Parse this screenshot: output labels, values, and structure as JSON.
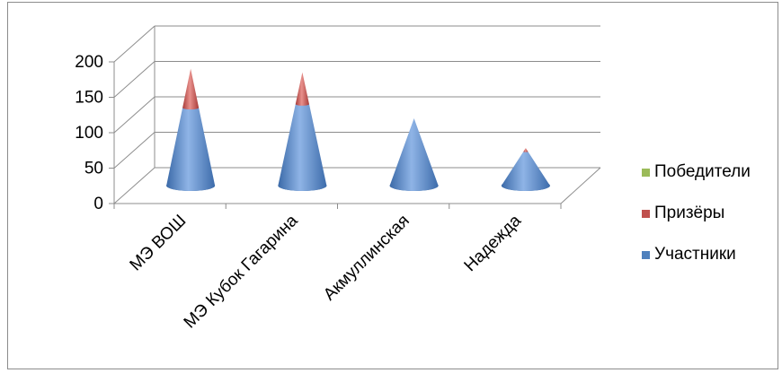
{
  "chart_data": {
    "type": "bar",
    "subtype": "3d-cone-stacked",
    "categories": [
      "МЭ ВОШ",
      "МЭ Кубок Гагарина",
      "Акмуллинская",
      "Надежда"
    ],
    "series": [
      {
        "name": "Участники",
        "color": "#4f81bd",
        "values": [
          110,
          115,
          95,
          48
        ]
      },
      {
        "name": "Призёры",
        "color": "#c0504d",
        "values": [
          55,
          45,
          0,
          5
        ]
      },
      {
        "name": "Победители",
        "color": "#9bbb59",
        "values": [
          0,
          0,
          0,
          0
        ]
      }
    ],
    "y_ticks": [
      "0",
      "50",
      "100",
      "150",
      "200"
    ],
    "ylim": [
      0,
      200
    ],
    "grid": true,
    "legend_position": "right"
  }
}
